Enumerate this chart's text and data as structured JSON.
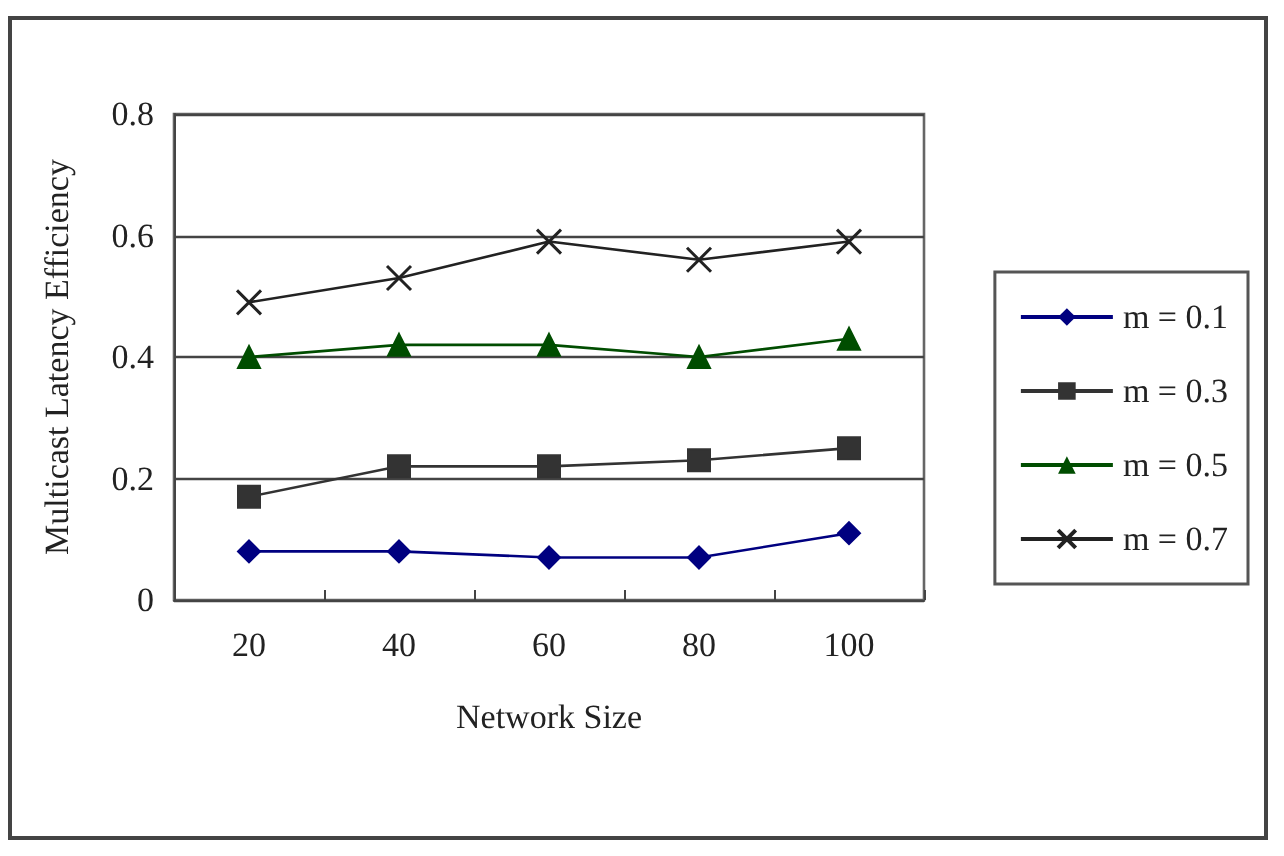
{
  "chart_data": {
    "type": "line",
    "xlabel": "Network Size",
    "ylabel": "Multicast Latency Efficiency",
    "categories": [
      "20",
      "40",
      "60",
      "80",
      "100"
    ],
    "series": [
      {
        "name": "m = 0.1",
        "color": "#000080",
        "marker": "diamond",
        "values": [
          0.08,
          0.08,
          0.07,
          0.07,
          0.11
        ]
      },
      {
        "name": "m = 0.3",
        "color": "#333333",
        "marker": "square",
        "values": [
          0.17,
          0.22,
          0.22,
          0.23,
          0.25
        ]
      },
      {
        "name": "m = 0.5",
        "color": "#004d00",
        "marker": "triangle",
        "values": [
          0.4,
          0.42,
          0.42,
          0.4,
          0.43
        ]
      },
      {
        "name": "m = 0.7",
        "color": "#222222",
        "marker": "cross",
        "values": [
          0.49,
          0.53,
          0.59,
          0.56,
          0.59
        ]
      }
    ],
    "ylim": [
      0,
      0.8
    ],
    "yticks": [
      0,
      0.2,
      0.4,
      0.6,
      0.8
    ],
    "grid": "y",
    "legend": "right"
  }
}
